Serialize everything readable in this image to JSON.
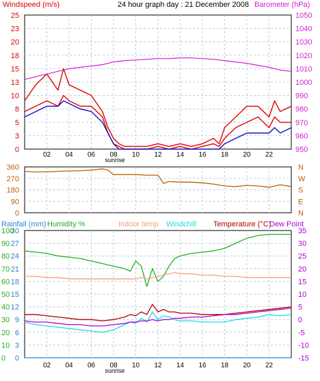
{
  "header": {
    "left_title": "Windspeed (m/s)",
    "center_title": "24 hour graph day : 21 December 2008",
    "right_title": "Barometer (hPa)"
  },
  "colors": {
    "wind": "#e00000",
    "gust": "#e00000",
    "wind_avg": "#1010c0",
    "baro": "#d020d0",
    "direction": "#c06000",
    "rainfall": "#3080d0",
    "humidity": "#20b020",
    "indoor": "#f0a080",
    "windchill": "#20d8e0",
    "temperature": "#b00000",
    "dewpoint": "#b000d0",
    "grid": "#b8ccd8",
    "axis": "#000000"
  },
  "x_ticks": [
    "02",
    "04",
    "06",
    "08",
    "10",
    "12",
    "14",
    "16",
    "18",
    "20",
    "22"
  ],
  "sunrise_label": "sunrise",
  "chart_data": [
    {
      "type": "line",
      "name": "wind-barometer",
      "left_axis": {
        "label": "Windspeed (m/s)",
        "ylim": [
          0,
          25
        ],
        "ticks": [
          "0",
          "3",
          "5",
          "8",
          "10",
          "13",
          "15",
          "18",
          "20",
          "23",
          "25"
        ]
      },
      "right_axis": {
        "label": "Barometer (hPa)",
        "ylim": [
          950,
          1050
        ],
        "ticks": [
          "950",
          "960",
          "970",
          "980",
          "990",
          "1000",
          "1010",
          "1020",
          "1030",
          "1040",
          "1050"
        ]
      },
      "x": [
        0,
        1,
        2,
        3,
        3.5,
        4,
        5,
        6,
        7,
        7.5,
        8,
        8.5,
        9,
        10,
        11,
        12,
        13,
        14,
        15,
        16,
        17,
        17.5,
        18,
        19,
        20,
        21,
        22,
        22.5,
        23,
        24
      ],
      "series": [
        {
          "name": "Gust",
          "axis": "left",
          "values": [
            9,
            12,
            14,
            11,
            15,
            12,
            11,
            10,
            7,
            4,
            2,
            1,
            0.5,
            0.5,
            0.5,
            1,
            0.5,
            1,
            0.5,
            1,
            2,
            1,
            4,
            6,
            8,
            8,
            6,
            9,
            7,
            8
          ]
        },
        {
          "name": "Wind",
          "axis": "left",
          "values": [
            7,
            8,
            9,
            8,
            10,
            9,
            8,
            8,
            6,
            3,
            1,
            0.5,
            0,
            0,
            0,
            0.5,
            0,
            0.5,
            0,
            0.5,
            1,
            0.5,
            2,
            4,
            5,
            6,
            4,
            6,
            5,
            5
          ]
        },
        {
          "name": "Average",
          "axis": "left",
          "values": [
            6,
            7,
            8,
            8,
            9,
            8.5,
            7.5,
            7,
            5,
            3,
            1,
            0,
            0,
            0,
            0,
            0,
            0,
            0,
            0,
            0,
            0,
            0,
            1,
            2,
            3,
            3,
            3,
            4,
            3,
            4
          ]
        },
        {
          "name": "Barometer",
          "axis": "right",
          "values": [
            1002,
            1004,
            1006,
            1008,
            1009,
            1010,
            1011,
            1012,
            1013,
            1014,
            1015,
            1015.5,
            1016,
            1016.5,
            1017,
            1017.5,
            1017.5,
            1018,
            1018,
            1017.5,
            1017,
            1016.5,
            1016,
            1015,
            1014,
            1012.5,
            1011,
            1010,
            1009,
            1008
          ]
        }
      ]
    },
    {
      "type": "line",
      "name": "wind-direction",
      "left_axis": {
        "ylim": [
          0,
          360
        ],
        "ticks": [
          "0",
          "90",
          "180",
          "270",
          "360"
        ]
      },
      "right_labels": [
        "N",
        "W",
        "S",
        "E",
        "N"
      ],
      "x": [
        0,
        1,
        2,
        3,
        4,
        5,
        6,
        7,
        7.5,
        8,
        9,
        10,
        11,
        12,
        12.5,
        13,
        14,
        15,
        16,
        17,
        18,
        19,
        20,
        21,
        22,
        23,
        24
      ],
      "series": [
        {
          "name": "Direction",
          "values": [
            325,
            320,
            322,
            325,
            328,
            330,
            335,
            345,
            335,
            300,
            300,
            300,
            295,
            295,
            230,
            245,
            240,
            240,
            235,
            225,
            210,
            205,
            215,
            210,
            200,
            220,
            205
          ]
        }
      ]
    },
    {
      "type": "line",
      "name": "temperature-humidity",
      "legend": [
        "Rainfall (mm)",
        "Humidity %",
        "Indoor temp",
        "Windchill",
        "Temperature (°C)",
        "Dew Point"
      ],
      "left_axes": [
        {
          "label": "Rainfall (mm)",
          "ticks": [
            "0",
            "3",
            "6",
            "9",
            "12",
            "15",
            "18",
            "21",
            "24",
            "27",
            "30"
          ],
          "ylim": [
            0,
            30
          ]
        },
        {
          "label": "Humidity %",
          "ticks": [
            "0",
            "10",
            "20",
            "30",
            "40",
            "50",
            "60",
            "70",
            "80",
            "90",
            "100"
          ],
          "ylim": [
            0,
            100
          ]
        }
      ],
      "right_axis": {
        "label": "Temperature (°C)",
        "ticks": [
          "-15",
          "-10",
          "-5",
          "0",
          "5",
          "10",
          "15",
          "20",
          "25",
          "30",
          "35"
        ],
        "ylim": [
          -15,
          35
        ]
      },
      "x": [
        0,
        1,
        2,
        3,
        4,
        5,
        6,
        7,
        8,
        9,
        9.5,
        10,
        10.5,
        11,
        11.5,
        12,
        12.5,
        13,
        13.5,
        14,
        15,
        16,
        17,
        18,
        19,
        20,
        21,
        22,
        23,
        24
      ],
      "series": [
        {
          "name": "Humidity %",
          "axis": "humidity",
          "values": [
            84,
            83,
            82,
            80,
            79,
            78,
            76,
            74,
            72,
            70,
            68,
            76,
            72,
            56,
            70,
            60,
            64,
            72,
            78,
            80,
            82,
            83,
            84,
            86,
            90,
            94,
            96,
            97,
            97,
            97
          ]
        },
        {
          "name": "Indoor temp",
          "axis": "temp",
          "values": [
            17,
            17,
            16.5,
            16.5,
            16,
            16,
            16,
            16,
            16,
            16,
            16,
            16,
            16.5,
            16,
            16.5,
            17,
            17.5,
            18,
            18.5,
            18,
            18,
            17.5,
            17.5,
            17,
            17,
            16.5,
            16.5,
            16.5,
            16.5,
            16.5
          ]
        },
        {
          "name": "Temperature",
          "axis": "temp",
          "values": [
            2,
            2,
            1.5,
            1,
            0.5,
            0,
            0,
            -0.5,
            0,
            1,
            2,
            1.5,
            3,
            2,
            6,
            3,
            4,
            3,
            3,
            2.5,
            2.5,
            2,
            2,
            2,
            2.5,
            3,
            3.5,
            4,
            4.5,
            5
          ]
        },
        {
          "name": "Windchill",
          "axis": "temp",
          "values": [
            -1,
            -2,
            -2.5,
            -3,
            -3.5,
            -4,
            -4.5,
            -5,
            -4,
            -2,
            -1,
            -1.5,
            0.5,
            -1,
            3,
            0,
            1.5,
            1,
            0,
            -0.5,
            -0.5,
            -1,
            -1,
            -1,
            0,
            0.5,
            1,
            2,
            1.5,
            2
          ]
        },
        {
          "name": "Dew Point",
          "axis": "temp",
          "values": [
            -0.5,
            -1,
            -1,
            -1.5,
            -2,
            -2,
            -2.5,
            -2.5,
            -2,
            -1.5,
            -1,
            -1,
            -0.5,
            -0.5,
            0,
            -0.5,
            0,
            0,
            0.5,
            0.5,
            1,
            1,
            1.5,
            2,
            2,
            2.5,
            3,
            3.5,
            4,
            4.5
          ]
        },
        {
          "name": "Rainfall (mm)",
          "axis": "rain",
          "values": [
            0,
            0,
            0,
            0,
            0,
            0,
            0,
            0,
            0,
            0,
            0,
            0,
            0,
            0,
            0,
            0,
            0,
            0,
            0,
            0,
            0,
            0,
            0,
            0,
            0,
            0,
            0,
            0,
            0,
            0
          ]
        }
      ]
    }
  ]
}
